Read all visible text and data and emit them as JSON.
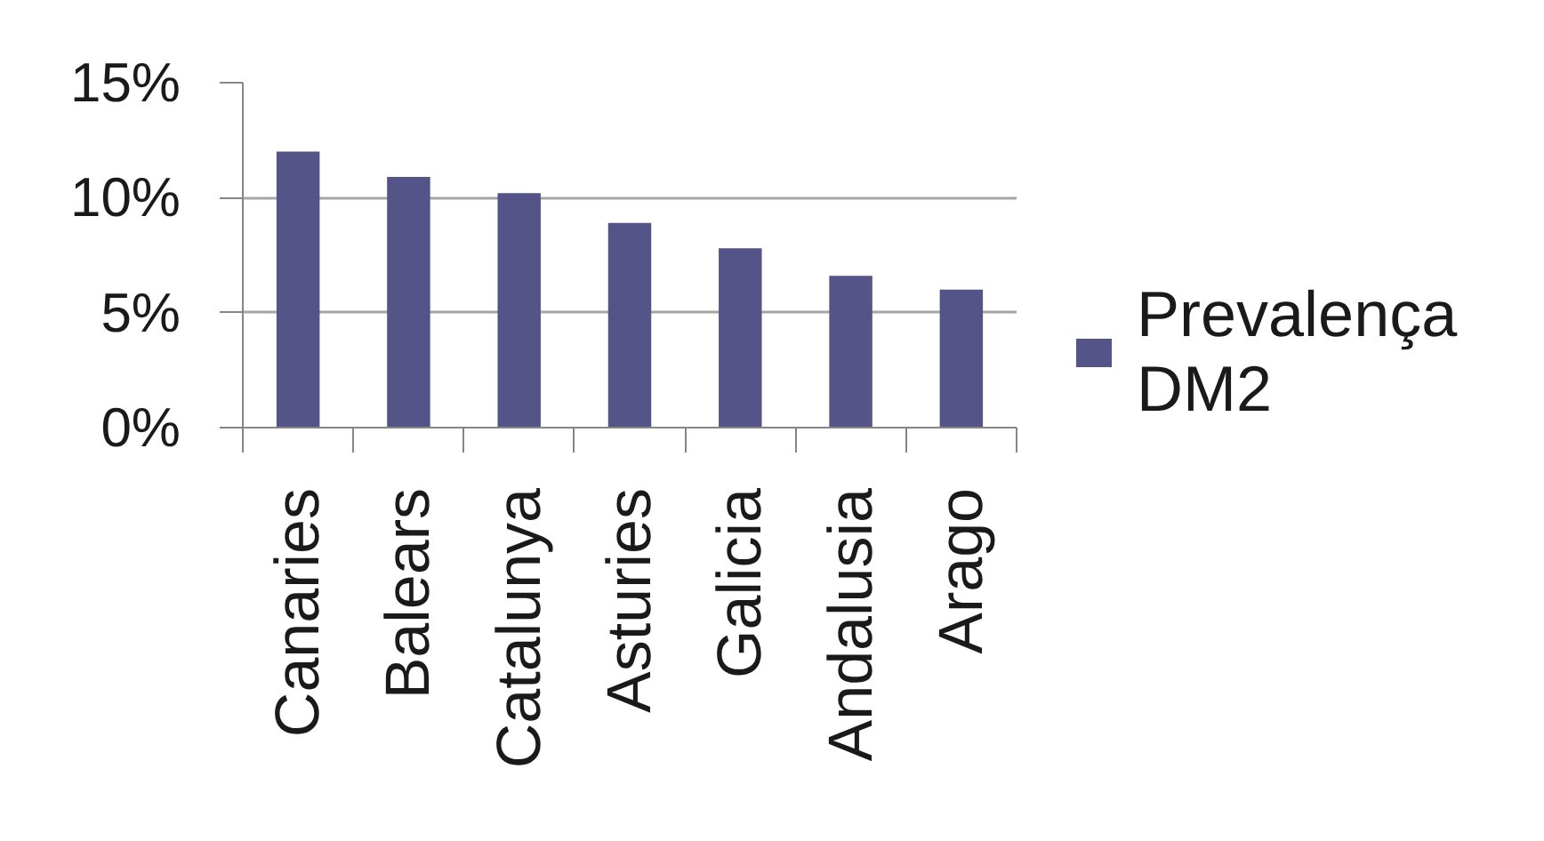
{
  "chart_data": {
    "type": "bar",
    "categories": [
      "Canaries",
      "Balears",
      "Catalunya",
      "Asturies",
      "Galicia",
      "Andalusia",
      "Arago"
    ],
    "series": [
      {
        "name": "Prevalença DM2",
        "color": "#545489",
        "values": [
          12.0,
          10.9,
          10.2,
          8.9,
          7.8,
          6.6,
          6.0
        ]
      }
    ],
    "ylim": [
      0,
      15
    ],
    "yticks": [
      {
        "value": 0,
        "label": "0%"
      },
      {
        "value": 5,
        "label": "5%"
      },
      {
        "value": 10,
        "label": "10%"
      },
      {
        "value": 15,
        "label": "15%"
      }
    ],
    "grid": "y",
    "legend": "right"
  }
}
